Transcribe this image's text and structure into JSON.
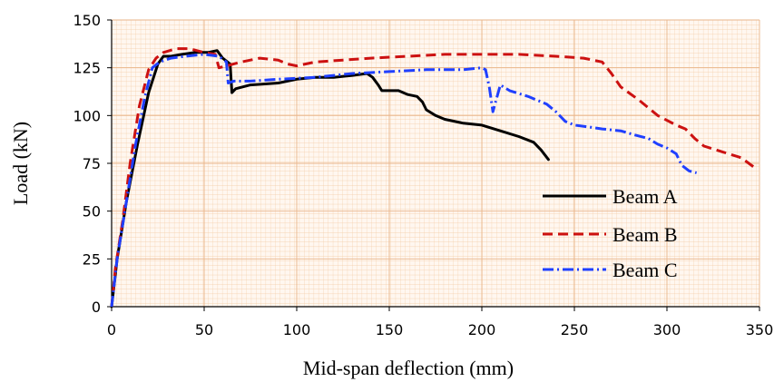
{
  "chart_data": {
    "type": "line",
    "title": "",
    "xlabel": "Mid-span deflection (mm)",
    "ylabel": "Load (kN)",
    "xlim": [
      0,
      350
    ],
    "ylim": [
      0,
      150
    ],
    "x_ticks": [
      "0",
      "50",
      "100",
      "150",
      "200",
      "250",
      "300",
      "350"
    ],
    "y_ticks": [
      "0",
      "25",
      "50",
      "75",
      "100",
      "125",
      "150"
    ],
    "grid": true,
    "legend_position": "center-right",
    "series": [
      {
        "name": "Beam A",
        "color": "#000000",
        "style": "solid",
        "points": [
          [
            0,
            0
          ],
          [
            3,
            25
          ],
          [
            8,
            55
          ],
          [
            14,
            85
          ],
          [
            20,
            112
          ],
          [
            25,
            127
          ],
          [
            28,
            131
          ],
          [
            32,
            131
          ],
          [
            38,
            132
          ],
          [
            45,
            133
          ],
          [
            52,
            133
          ],
          [
            57,
            134
          ],
          [
            60,
            130
          ],
          [
            64,
            127
          ],
          [
            65,
            112
          ],
          [
            67,
            114
          ],
          [
            75,
            116
          ],
          [
            90,
            117
          ],
          [
            100,
            119
          ],
          [
            110,
            120
          ],
          [
            120,
            120
          ],
          [
            130,
            121
          ],
          [
            138,
            122
          ],
          [
            141,
            120
          ],
          [
            144,
            116
          ],
          [
            146,
            113
          ],
          [
            150,
            113
          ],
          [
            155,
            113
          ],
          [
            160,
            111
          ],
          [
            165,
            110
          ],
          [
            168,
            107
          ],
          [
            170,
            103
          ],
          [
            175,
            100
          ],
          [
            180,
            98
          ],
          [
            190,
            96
          ],
          [
            200,
            95
          ],
          [
            210,
            92
          ],
          [
            220,
            89
          ],
          [
            228,
            86
          ],
          [
            232,
            82
          ],
          [
            236,
            77
          ]
        ]
      },
      {
        "name": "Beam B",
        "color": "#cc1111",
        "style": "dashed",
        "points": [
          [
            0,
            0
          ],
          [
            2,
            20
          ],
          [
            6,
            45
          ],
          [
            10,
            75
          ],
          [
            15,
            105
          ],
          [
            20,
            124
          ],
          [
            24,
            130
          ],
          [
            28,
            133
          ],
          [
            35,
            135
          ],
          [
            42,
            135
          ],
          [
            50,
            133
          ],
          [
            56,
            132
          ],
          [
            58,
            125
          ],
          [
            62,
            126
          ],
          [
            70,
            128
          ],
          [
            80,
            130
          ],
          [
            90,
            129
          ],
          [
            95,
            127
          ],
          [
            100,
            126
          ],
          [
            110,
            128
          ],
          [
            125,
            129
          ],
          [
            140,
            130
          ],
          [
            160,
            131
          ],
          [
            180,
            132
          ],
          [
            200,
            132
          ],
          [
            220,
            132
          ],
          [
            240,
            131
          ],
          [
            255,
            130
          ],
          [
            265,
            128
          ],
          [
            270,
            122
          ],
          [
            275,
            115
          ],
          [
            285,
            108
          ],
          [
            295,
            100
          ],
          [
            305,
            95
          ],
          [
            310,
            93
          ],
          [
            315,
            88
          ],
          [
            320,
            84
          ],
          [
            330,
            81
          ],
          [
            340,
            78
          ],
          [
            347,
            73
          ]
        ]
      },
      {
        "name": "Beam C",
        "color": "#1f3fff",
        "style": "dashdot",
        "points": [
          [
            0,
            0
          ],
          [
            3,
            25
          ],
          [
            8,
            55
          ],
          [
            13,
            85
          ],
          [
            18,
            110
          ],
          [
            22,
            125
          ],
          [
            26,
            128
          ],
          [
            32,
            130
          ],
          [
            40,
            131
          ],
          [
            50,
            132
          ],
          [
            58,
            131
          ],
          [
            62,
            128
          ],
          [
            63,
            117
          ],
          [
            66,
            118
          ],
          [
            75,
            118
          ],
          [
            90,
            119
          ],
          [
            110,
            120
          ],
          [
            130,
            122
          ],
          [
            150,
            123
          ],
          [
            170,
            124
          ],
          [
            190,
            124
          ],
          [
            200,
            125
          ],
          [
            202,
            124
          ],
          [
            204,
            115
          ],
          [
            206,
            102
          ],
          [
            210,
            116
          ],
          [
            215,
            113
          ],
          [
            225,
            110
          ],
          [
            235,
            106
          ],
          [
            240,
            102
          ],
          [
            245,
            97
          ],
          [
            250,
            95
          ],
          [
            258,
            94
          ],
          [
            265,
            93
          ],
          [
            275,
            92
          ],
          [
            282,
            90
          ],
          [
            290,
            88
          ],
          [
            295,
            85
          ],
          [
            300,
            83
          ],
          [
            305,
            80
          ],
          [
            308,
            74
          ],
          [
            312,
            71
          ],
          [
            316,
            70
          ]
        ]
      }
    ]
  }
}
